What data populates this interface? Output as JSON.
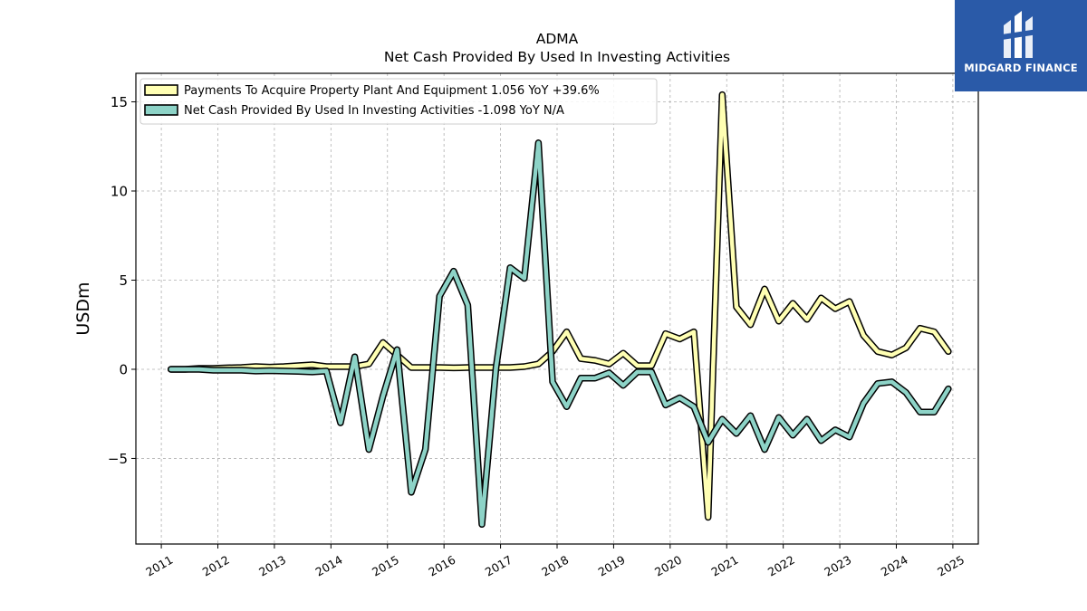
{
  "chart_data": {
    "type": "line",
    "title": "ADMA",
    "subtitle": "Net Cash Provided By Used In Investing Activities",
    "ylabel": "USDm",
    "xlabel": "",
    "xlim": [
      2010.55,
      2025.45
    ],
    "ylim": [
      -9.8,
      16.6
    ],
    "grid": true,
    "legend_position": "top-left",
    "x_ticks": [
      2011,
      2012,
      2013,
      2014,
      2015,
      2016,
      2017,
      2018,
      2019,
      2020,
      2021,
      2022,
      2023,
      2024,
      2025
    ],
    "y_ticks": [
      -5,
      0,
      5,
      10,
      15
    ],
    "y_tick_labels": [
      "−5",
      "0",
      "5",
      "10",
      "15"
    ],
    "series": [
      {
        "name": "Payments To Acquire Property Plant And Equipment",
        "legend_label": "Payments To Acquire Property Plant And Equipment  1.056 YoY +39.6%",
        "color": "#ffffb3",
        "points": [
          [
            2011.17,
            0.0
          ],
          [
            2011.42,
            0.0
          ],
          [
            2011.67,
            0.05
          ],
          [
            2011.92,
            0.05
          ],
          [
            2012.17,
            0.08
          ],
          [
            2012.42,
            0.1
          ],
          [
            2012.67,
            0.15
          ],
          [
            2012.92,
            0.12
          ],
          [
            2013.17,
            0.15
          ],
          [
            2013.42,
            0.2
          ],
          [
            2013.67,
            0.25
          ],
          [
            2013.92,
            0.15
          ],
          [
            2014.17,
            0.15
          ],
          [
            2014.42,
            0.15
          ],
          [
            2014.67,
            0.3
          ],
          [
            2014.92,
            1.5
          ],
          [
            2015.17,
            0.8
          ],
          [
            2015.42,
            0.1
          ],
          [
            2015.67,
            0.1
          ],
          [
            2015.92,
            0.1
          ],
          [
            2016.17,
            0.08
          ],
          [
            2016.42,
            0.1
          ],
          [
            2016.67,
            0.1
          ],
          [
            2016.92,
            0.1
          ],
          [
            2017.17,
            0.1
          ],
          [
            2017.42,
            0.15
          ],
          [
            2017.67,
            0.3
          ],
          [
            2017.92,
            1.0
          ],
          [
            2018.17,
            2.1
          ],
          [
            2018.42,
            0.6
          ],
          [
            2018.67,
            0.5
          ],
          [
            2018.92,
            0.3
          ],
          [
            2019.17,
            0.9
          ],
          [
            2019.42,
            0.2
          ],
          [
            2019.67,
            0.2
          ],
          [
            2019.92,
            2.0
          ],
          [
            2020.17,
            1.7
          ],
          [
            2020.42,
            2.1
          ],
          [
            2020.67,
            -8.3
          ],
          [
            2020.92,
            15.4
          ],
          [
            2021.17,
            3.5
          ],
          [
            2021.42,
            2.5
          ],
          [
            2021.67,
            4.5
          ],
          [
            2021.92,
            2.7
          ],
          [
            2022.17,
            3.7
          ],
          [
            2022.42,
            2.8
          ],
          [
            2022.67,
            4.0
          ],
          [
            2022.92,
            3.4
          ],
          [
            2023.17,
            3.8
          ],
          [
            2023.42,
            1.9
          ],
          [
            2023.67,
            1.0
          ],
          [
            2023.92,
            0.8
          ],
          [
            2024.17,
            1.2
          ],
          [
            2024.42,
            2.3
          ],
          [
            2024.67,
            2.1
          ],
          [
            2024.92,
            1.0
          ]
        ]
      },
      {
        "name": "Net Cash Provided By Used In Investing Activities",
        "legend_label": "Net Cash Provided By Used In Investing Activities  -1.098 YoY N/A",
        "color": "#8dd3c7",
        "points": [
          [
            2011.17,
            0.0
          ],
          [
            2011.42,
            0.0
          ],
          [
            2011.67,
            0.0
          ],
          [
            2011.92,
            -0.05
          ],
          [
            2012.17,
            -0.05
          ],
          [
            2012.42,
            -0.05
          ],
          [
            2012.67,
            -0.1
          ],
          [
            2012.92,
            -0.08
          ],
          [
            2013.17,
            -0.1
          ],
          [
            2013.42,
            -0.12
          ],
          [
            2013.67,
            -0.15
          ],
          [
            2013.92,
            -0.1
          ],
          [
            2014.17,
            -3.0
          ],
          [
            2014.42,
            0.7
          ],
          [
            2014.67,
            -4.5
          ],
          [
            2014.92,
            -1.5
          ],
          [
            2015.17,
            1.1
          ],
          [
            2015.42,
            -6.9
          ],
          [
            2015.67,
            -4.5
          ],
          [
            2015.92,
            4.1
          ],
          [
            2016.17,
            5.5
          ],
          [
            2016.42,
            3.6
          ],
          [
            2016.67,
            -8.7
          ],
          [
            2016.92,
            0.1
          ],
          [
            2017.17,
            5.7
          ],
          [
            2017.42,
            5.1
          ],
          [
            2017.67,
            12.7
          ],
          [
            2017.92,
            -0.7
          ],
          [
            2018.17,
            -2.1
          ],
          [
            2018.42,
            -0.5
          ],
          [
            2018.67,
            -0.5
          ],
          [
            2018.92,
            -0.2
          ],
          [
            2019.17,
            -0.9
          ],
          [
            2019.42,
            -0.15
          ],
          [
            2019.67,
            -0.15
          ],
          [
            2019.92,
            -2.0
          ],
          [
            2020.17,
            -1.6
          ],
          [
            2020.42,
            -2.1
          ],
          [
            2020.67,
            -4.1
          ],
          [
            2020.92,
            -2.8
          ],
          [
            2021.17,
            -3.6
          ],
          [
            2021.42,
            -2.6
          ],
          [
            2021.67,
            -4.5
          ],
          [
            2021.92,
            -2.7
          ],
          [
            2022.17,
            -3.7
          ],
          [
            2022.42,
            -2.8
          ],
          [
            2022.67,
            -4.0
          ],
          [
            2022.92,
            -3.4
          ],
          [
            2023.17,
            -3.8
          ],
          [
            2023.42,
            -1.9
          ],
          [
            2023.67,
            -0.8
          ],
          [
            2023.92,
            -0.7
          ],
          [
            2024.17,
            -1.3
          ],
          [
            2024.42,
            -2.4
          ],
          [
            2024.67,
            -2.4
          ],
          [
            2024.92,
            -1.1
          ]
        ]
      }
    ]
  },
  "watermark": {
    "text": "MIDGARD FINANCE",
    "background": "#2a5aa8",
    "icon": "midgard-logo-icon"
  }
}
